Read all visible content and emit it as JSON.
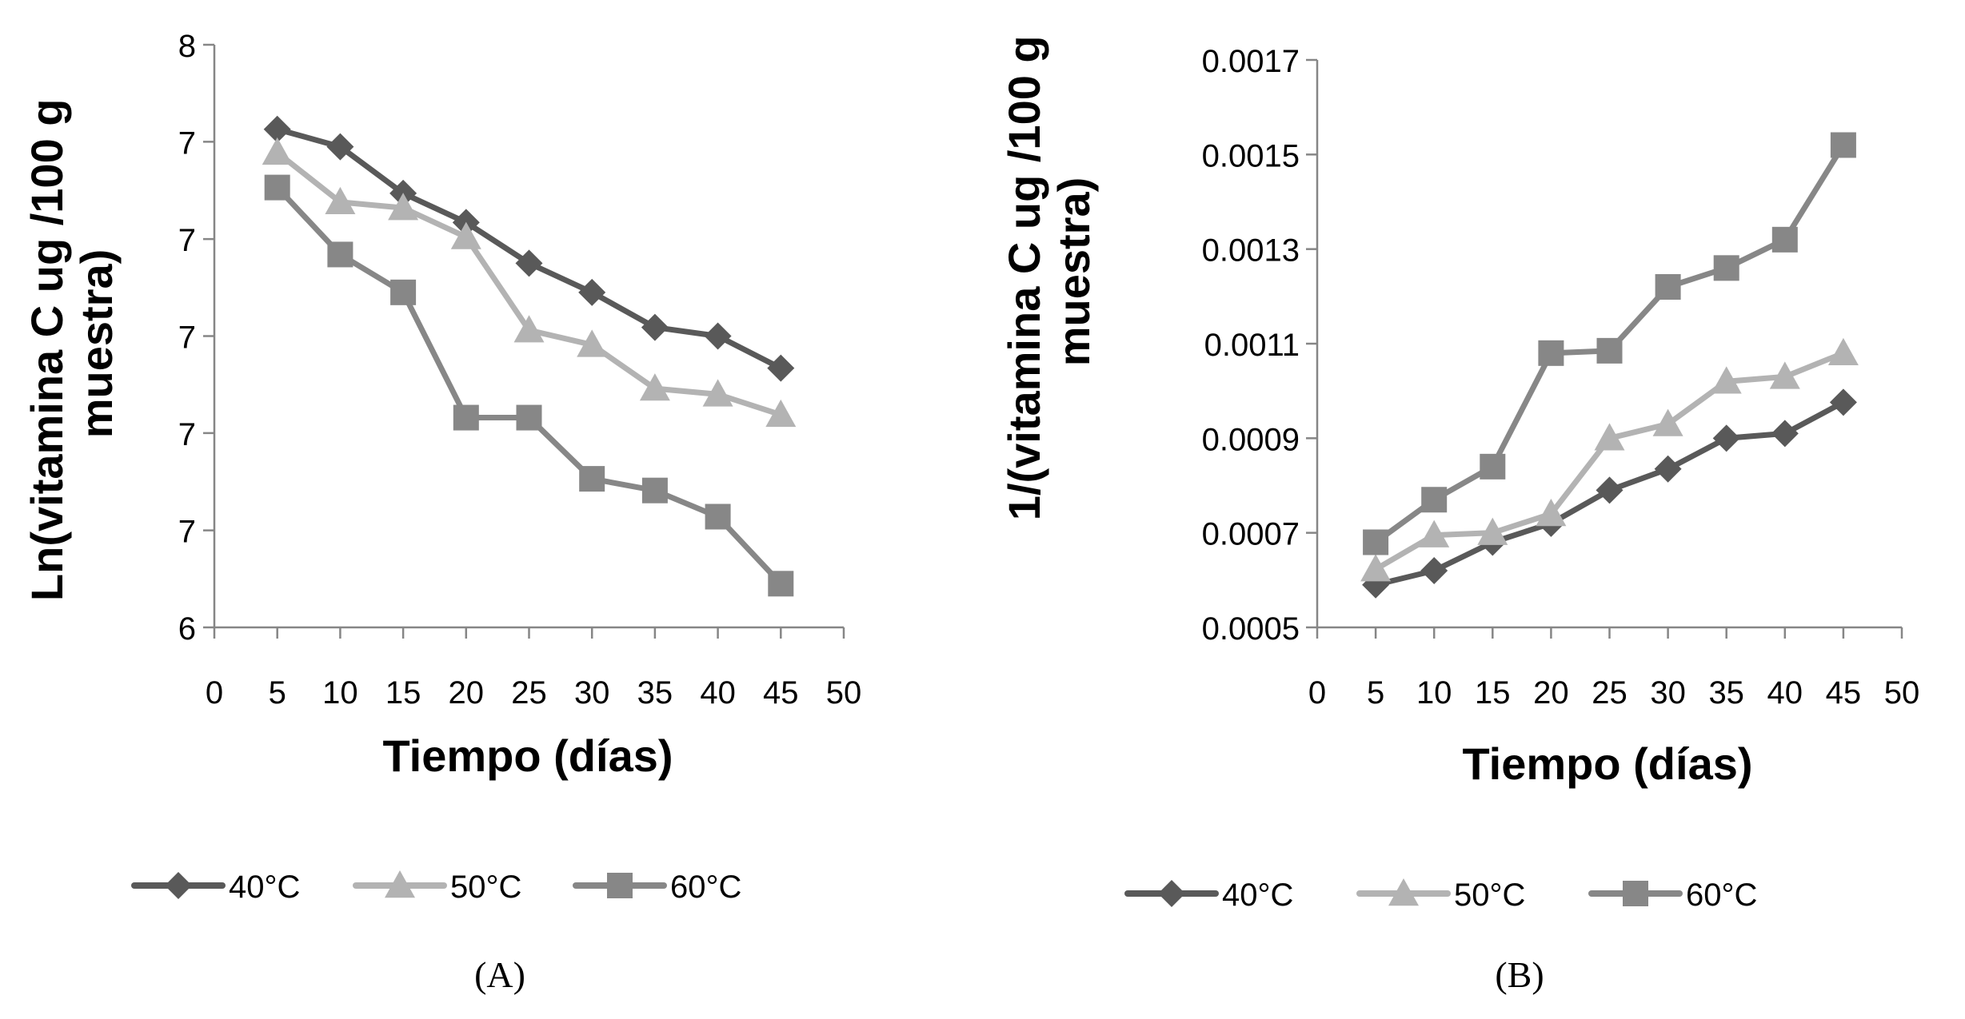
{
  "chart_data": [
    {
      "id": "A",
      "type": "line",
      "panel_label": "(A)",
      "title": "",
      "xlabel": "Tiempo (días)",
      "ylabel_lines": [
        "Ln(vitamina  C ug /100 g",
        "muestra)"
      ],
      "ylabel": "Ln(vitamina  C ug /100 g muestra)",
      "xlim": [
        0,
        50
      ],
      "ylim": [
        6,
        8
      ],
      "x_ticks": [
        0,
        5,
        10,
        15,
        20,
        25,
        30,
        35,
        40,
        45,
        50
      ],
      "x_tick_labels": [
        "0",
        "5",
        "10",
        "15",
        "20",
        "25",
        "30",
        "35",
        "40",
        "45",
        "50"
      ],
      "y_ticks": [
        6,
        6.333,
        6.667,
        7,
        7.333,
        7.667,
        8
      ],
      "y_tick_labels": [
        "6",
        "7",
        "7",
        "7",
        "7",
        "7",
        "8"
      ],
      "grid": false,
      "legend_position": "bottom",
      "x": [
        5,
        10,
        15,
        20,
        25,
        30,
        35,
        40,
        45
      ],
      "series": [
        {
          "name": "40°C",
          "marker": "diamond",
          "color": "#595959",
          "values": [
            7.71,
            7.65,
            7.49,
            7.39,
            7.25,
            7.15,
            7.03,
            7.0,
            6.89
          ]
        },
        {
          "name": "50°C",
          "marker": "triangle",
          "color": "#b3b3b3",
          "values": [
            7.63,
            7.46,
            7.44,
            7.34,
            7.02,
            6.97,
            6.82,
            6.8,
            6.73
          ]
        },
        {
          "name": "60°C",
          "marker": "square",
          "color": "#878787",
          "values": [
            7.51,
            7.28,
            7.15,
            6.72,
            6.72,
            6.51,
            6.47,
            6.38,
            6.15
          ]
        }
      ]
    },
    {
      "id": "B",
      "type": "line",
      "panel_label": "(B)",
      "title": "",
      "xlabel": "Tiempo (días)",
      "ylabel_lines": [
        "1/(vitamina  C ug /100 g",
        "muestra)"
      ],
      "ylabel": "1/(vitamina  C ug /100 g muestra)",
      "xlim": [
        0,
        50
      ],
      "ylim": [
        0.0005,
        0.0017
      ],
      "x_ticks": [
        0,
        5,
        10,
        15,
        20,
        25,
        30,
        35,
        40,
        45,
        50
      ],
      "x_tick_labels": [
        "0",
        "5",
        "10",
        "15",
        "20",
        "25",
        "30",
        "35",
        "40",
        "45",
        "50"
      ],
      "y_ticks": [
        0.0005,
        0.0007,
        0.0009,
        0.0011,
        0.0013,
        0.0015,
        0.0017
      ],
      "y_tick_labels": [
        "0.0005",
        "0.0007",
        "0.0009",
        "0.0011",
        "0.0013",
        "0.0015",
        "0.0017"
      ],
      "grid": false,
      "legend_position": "bottom",
      "x": [
        5,
        10,
        15,
        20,
        25,
        30,
        35,
        40,
        45
      ],
      "series": [
        {
          "name": "40°C",
          "marker": "diamond",
          "color": "#595959",
          "values": [
            0.00059,
            0.00062,
            0.00068,
            0.00072,
            0.00079,
            0.000835,
            0.0009,
            0.00091,
            0.000976
          ]
        },
        {
          "name": "50°C",
          "marker": "triangle",
          "color": "#b3b3b3",
          "values": [
            0.000623,
            0.000695,
            0.0007,
            0.00074,
            0.0009,
            0.00093,
            0.00102,
            0.00103,
            0.00108
          ]
        },
        {
          "name": "60°C",
          "marker": "square",
          "color": "#878787",
          "values": [
            0.00068,
            0.00077,
            0.00084,
            0.00108,
            0.001085,
            0.00122,
            0.00126,
            0.00132,
            0.00152
          ]
        }
      ]
    }
  ]
}
